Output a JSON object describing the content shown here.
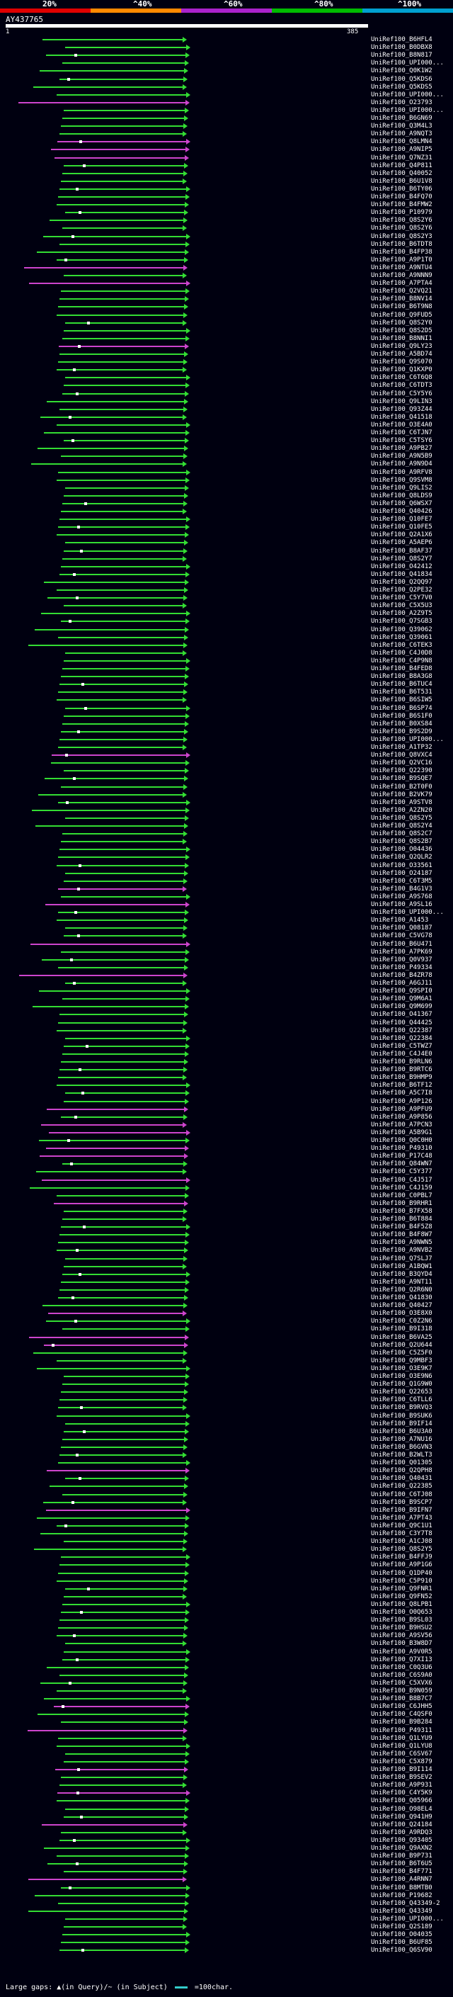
{
  "legend": {
    "labels": [
      "20%",
      "^40%",
      "^60%",
      "^80%",
      "^100%"
    ],
    "colors": [
      "#e00000",
      "#ff8800",
      "#aa22cc",
      "#00bb00",
      "#00a0d0"
    ]
  },
  "query": {
    "name": "AY437765",
    "start": "1",
    "end": "385"
  },
  "colors": {
    "green": "#33dd33",
    "magenta": "#cc44cc",
    "dark": "#335533"
  },
  "footer": {
    "gaps_label": "Large gaps:",
    "query_gap": "▲(in Query)/~ (in Subject)",
    "scale": "=100char."
  },
  "hits": [
    {
      "id": "UniRef100_B6HFL4",
      "c": "green"
    },
    {
      "id": "UniRef100_B0DBX8",
      "c": "green"
    },
    {
      "id": "UniRef100_B8N817",
      "c": "green"
    },
    {
      "id": "UniRef100_UPI000...",
      "c": "green"
    },
    {
      "id": "UniRef100_Q0K1W2",
      "c": "green"
    },
    {
      "id": "UniRef100_Q5KDS6",
      "c": "green"
    },
    {
      "id": "UniRef100_Q5KDS5",
      "c": "green"
    },
    {
      "id": "UniRef100_UPI000...",
      "c": "green"
    },
    {
      "id": "UniRef100_O23793",
      "c": "magenta"
    },
    {
      "id": "UniRef100_UPI000...",
      "c": "green"
    },
    {
      "id": "UniRef100_B6GN69",
      "c": "green"
    },
    {
      "id": "UniRef100_Q3M4L3",
      "c": "green"
    },
    {
      "id": "UniRef100_A9NQT3",
      "c": "green"
    },
    {
      "id": "UniRef100_Q8LMN4",
      "c": "magenta"
    },
    {
      "id": "UniRef100_A9NIP5",
      "c": "magenta"
    },
    {
      "id": "UniRef100_Q7NZ31",
      "c": "magenta"
    },
    {
      "id": "UniRef100_Q4P811",
      "c": "green"
    },
    {
      "id": "UniRef100_Q40052",
      "c": "green"
    },
    {
      "id": "UniRef100_B6U1V8",
      "c": "green"
    },
    {
      "id": "UniRef100_B6TY06",
      "c": "green"
    },
    {
      "id": "UniRef100_B4FQ70",
      "c": "green"
    },
    {
      "id": "UniRef100_B4FMW2",
      "c": "green"
    },
    {
      "id": "UniRef100_P10979",
      "c": "green"
    },
    {
      "id": "UniRef100_Q8S2Y6",
      "c": "green"
    },
    {
      "id": "UniRef100_Q8S2Y6",
      "c": "green"
    },
    {
      "id": "UniRef100_Q8S2Y3",
      "c": "green"
    },
    {
      "id": "UniRef100_B6TDT8",
      "c": "green"
    },
    {
      "id": "UniRef100_B4FP38",
      "c": "green"
    },
    {
      "id": "UniRef100_A9P1T0",
      "c": "green"
    },
    {
      "id": "UniRef100_A9NTU4",
      "c": "magenta"
    },
    {
      "id": "UniRef100_A9NNN9",
      "c": "green"
    },
    {
      "id": "UniRef100_A7PTA4",
      "c": "magenta"
    },
    {
      "id": "UniRef100_Q2VQ21",
      "c": "green"
    },
    {
      "id": "UniRef100_B8NV14",
      "c": "green"
    },
    {
      "id": "UniRef100_B6T9N8",
      "c": "green"
    },
    {
      "id": "UniRef100_Q9FUD5",
      "c": "green"
    },
    {
      "id": "UniRef100_Q8S2Y0",
      "c": "green"
    },
    {
      "id": "UniRef100_Q8S2D5",
      "c": "green"
    },
    {
      "id": "UniRef100_B8NNI1",
      "c": "green"
    },
    {
      "id": "UniRef100_Q9LY23",
      "c": "magenta"
    },
    {
      "id": "UniRef100_A5BD74",
      "c": "green"
    },
    {
      "id": "UniRef100_Q9S070",
      "c": "green"
    },
    {
      "id": "UniRef100_Q1KXP0",
      "c": "green"
    },
    {
      "id": "UniRef100_C6T6Q8",
      "c": "green"
    },
    {
      "id": "UniRef100_C6TDT3",
      "c": "green"
    },
    {
      "id": "UniRef100_C5Y5Y6",
      "c": "green"
    },
    {
      "id": "UniRef100_Q9LIN3",
      "c": "green"
    },
    {
      "id": "UniRef100_Q93Z44",
      "c": "green"
    },
    {
      "id": "UniRef100_Q41518",
      "c": "green"
    },
    {
      "id": "UniRef100_O3E4A0",
      "c": "green"
    },
    {
      "id": "UniRef100_C6TJN7",
      "c": "green"
    },
    {
      "id": "UniRef100_C5TSY6",
      "c": "green"
    },
    {
      "id": "UniRef100_A9PB27",
      "c": "green"
    },
    {
      "id": "UniRef100_A9N5B9",
      "c": "green"
    },
    {
      "id": "UniRef100_A9N9D4",
      "c": "green"
    },
    {
      "id": "UniRef100_A9RFV8",
      "c": "green"
    },
    {
      "id": "UniRef100_Q9SVM8",
      "c": "green"
    },
    {
      "id": "UniRef100_Q9LIS2",
      "c": "green"
    },
    {
      "id": "UniRef100_Q8LDS9",
      "c": "green"
    },
    {
      "id": "UniRef100_Q6WSX7",
      "c": "green"
    },
    {
      "id": "UniRef100_Q40426",
      "c": "green"
    },
    {
      "id": "UniRef100_Q10FE7",
      "c": "green"
    },
    {
      "id": "UniRef100_Q10FE5",
      "c": "green"
    },
    {
      "id": "UniRef100_Q2A1X6",
      "c": "green"
    },
    {
      "id": "UniRef100_A5AEP6",
      "c": "green"
    },
    {
      "id": "UniRef100_B8AF37",
      "c": "green"
    },
    {
      "id": "UniRef100_Q8S2Y7",
      "c": "green"
    },
    {
      "id": "UniRef100_O42412",
      "c": "green"
    },
    {
      "id": "UniRef100_Q41834",
      "c": "green"
    },
    {
      "id": "UniRef100_Q2QQ97",
      "c": "green"
    },
    {
      "id": "UniRef100_Q2PE32",
      "c": "green"
    },
    {
      "id": "UniRef100_C5Y7V0",
      "c": "green"
    },
    {
      "id": "UniRef100_C5X5U3",
      "c": "green"
    },
    {
      "id": "UniRef100_A2Z9T5",
      "c": "green"
    },
    {
      "id": "UniRef100_Q7SGB3",
      "c": "green"
    },
    {
      "id": "UniRef100_Q39062",
      "c": "green"
    },
    {
      "id": "UniRef100_Q39061",
      "c": "green"
    },
    {
      "id": "UniRef100_C6TEK3",
      "c": "green"
    },
    {
      "id": "UniRef100_C4J0D8",
      "c": "green"
    },
    {
      "id": "UniRef100_C4P9N8",
      "c": "green"
    },
    {
      "id": "UniRef100_B4FED8",
      "c": "green"
    },
    {
      "id": "UniRef100_B8A3G8",
      "c": "green"
    },
    {
      "id": "UniRef100_B6TUC4",
      "c": "green"
    },
    {
      "id": "UniRef100_B6T531",
      "c": "green"
    },
    {
      "id": "UniRef100_B6SIW5",
      "c": "green"
    },
    {
      "id": "UniRef100_B6SP74",
      "c": "green"
    },
    {
      "id": "UniRef100_B6S1F0",
      "c": "green"
    },
    {
      "id": "UniRef100_B0XS84",
      "c": "green"
    },
    {
      "id": "UniRef100_B9S2D9",
      "c": "green"
    },
    {
      "id": "UniRef100_UPI000...",
      "c": "green"
    },
    {
      "id": "UniRef100_A1TP32",
      "c": "green"
    },
    {
      "id": "UniRef100_Q8VXC4",
      "c": "magenta"
    },
    {
      "id": "UniRef100_Q2VC16",
      "c": "green"
    },
    {
      "id": "UniRef100_Q22390",
      "c": "green"
    },
    {
      "id": "UniRef100_B9SQE7",
      "c": "green"
    },
    {
      "id": "UniRef100_B2T0F0",
      "c": "green"
    },
    {
      "id": "UniRef100_B2VK79",
      "c": "green"
    },
    {
      "id": "UniRef100_A9STV8",
      "c": "green"
    },
    {
      "id": "UniRef100_A2ZN20",
      "c": "green"
    },
    {
      "id": "UniRef100_Q8S2Y5",
      "c": "green"
    },
    {
      "id": "UniRef100_Q8S2Y4",
      "c": "green"
    },
    {
      "id": "UniRef100_Q8S2C7",
      "c": "green"
    },
    {
      "id": "UniRef100_Q8S2B7",
      "c": "green"
    },
    {
      "id": "UniRef100_O04436",
      "c": "green"
    },
    {
      "id": "UniRef100_Q2QLR2",
      "c": "green"
    },
    {
      "id": "UniRef100_O33561",
      "c": "green"
    },
    {
      "id": "UniRef100_O24187",
      "c": "green"
    },
    {
      "id": "UniRef100_C6T3M5",
      "c": "green"
    },
    {
      "id": "UniRef100_B4G1V3",
      "c": "magenta"
    },
    {
      "id": "UniRef100_A9S768",
      "c": "green"
    },
    {
      "id": "UniRef100_A9SL16",
      "c": "magenta"
    },
    {
      "id": "UniRef100_UPI000...",
      "c": "green"
    },
    {
      "id": "UniRef100_A1453",
      "c": "green"
    },
    {
      "id": "UniRef100_Q08187",
      "c": "green"
    },
    {
      "id": "UniRef100_C5VG78",
      "c": "green"
    },
    {
      "id": "UniRef100_B6U471",
      "c": "magenta"
    },
    {
      "id": "UniRef100_A7PK69",
      "c": "green"
    },
    {
      "id": "UniRef100_Q0V937",
      "c": "green"
    },
    {
      "id": "UniRef100_P49334",
      "c": "green"
    },
    {
      "id": "UniRef100_B4ZR78",
      "c": "magenta"
    },
    {
      "id": "UniRef100_A6GJ11",
      "c": "green"
    },
    {
      "id": "UniRef100_Q9SPI0",
      "c": "green"
    },
    {
      "id": "UniRef100_Q9M6A1",
      "c": "green"
    },
    {
      "id": "UniRef100_Q9M699",
      "c": "green"
    },
    {
      "id": "UniRef100_O41367",
      "c": "green"
    },
    {
      "id": "UniRef100_Q44425",
      "c": "green"
    },
    {
      "id": "UniRef100_Q22387",
      "c": "green"
    },
    {
      "id": "UniRef100_Q22384",
      "c": "green"
    },
    {
      "id": "UniRef100_C5TWZ7",
      "c": "green"
    },
    {
      "id": "UniRef100_C4J4E0",
      "c": "green"
    },
    {
      "id": "UniRef100_B9RLN6",
      "c": "green"
    },
    {
      "id": "UniRef100_B9RTC6",
      "c": "green"
    },
    {
      "id": "UniRef100_B9HMP9",
      "c": "green"
    },
    {
      "id": "UniRef100_B6TF12",
      "c": "green"
    },
    {
      "id": "UniRef100_A5C7I8",
      "c": "green"
    },
    {
      "id": "UniRef100_A9P126",
      "c": "green"
    },
    {
      "id": "UniRef100_A9PFU9",
      "c": "magenta"
    },
    {
      "id": "UniRef100_A9P856",
      "c": "green"
    },
    {
      "id": "UniRef100_A7PCN3",
      "c": "magenta"
    },
    {
      "id": "UniRef100_A5B9G1",
      "c": "magenta"
    },
    {
      "id": "UniRef100_Q0C0H0",
      "c": "green"
    },
    {
      "id": "UniRef100_P49310",
      "c": "magenta"
    },
    {
      "id": "UniRef100_P17C48",
      "c": "magenta"
    },
    {
      "id": "UniRef100_Q84WN7",
      "c": "green"
    },
    {
      "id": "UniRef100_C5Y377",
      "c": "green"
    },
    {
      "id": "UniRef100_C4J517",
      "c": "magenta"
    },
    {
      "id": "UniRef100_C4J159",
      "c": "green"
    },
    {
      "id": "UniRef100_C0PBL7",
      "c": "green"
    },
    {
      "id": "UniRef100_B9RHR1",
      "c": "magenta"
    },
    {
      "id": "UniRef100_B7FX58",
      "c": "green"
    },
    {
      "id": "UniRef100_B6T884",
      "c": "green"
    },
    {
      "id": "UniRef100_B4F5Z8",
      "c": "green"
    },
    {
      "id": "UniRef100_B4F8W7",
      "c": "green"
    },
    {
      "id": "UniRef100_A9NWN5",
      "c": "green"
    },
    {
      "id": "UniRef100_A9NVB2",
      "c": "green"
    },
    {
      "id": "UniRef100_Q7SLJ7",
      "c": "green"
    },
    {
      "id": "UniRef100_A1BQW1",
      "c": "green"
    },
    {
      "id": "UniRef100_B3QYD4",
      "c": "green"
    },
    {
      "id": "UniRef100_A9NT11",
      "c": "green"
    },
    {
      "id": "UniRef100_Q2R6N0",
      "c": "green"
    },
    {
      "id": "UniRef100_Q41830",
      "c": "green"
    },
    {
      "id": "UniRef100_Q40427",
      "c": "green"
    },
    {
      "id": "UniRef100_O3E8X0",
      "c": "magenta"
    },
    {
      "id": "UniRef100_C0Z2N6",
      "c": "green"
    },
    {
      "id": "UniRef100_B9I318",
      "c": "green"
    },
    {
      "id": "UniRef100_B6VA25",
      "c": "magenta"
    },
    {
      "id": "UniRef100_Q2U644",
      "c": "magenta"
    },
    {
      "id": "UniRef100_C5Z5F0",
      "c": "green"
    },
    {
      "id": "UniRef100_Q9MBF3",
      "c": "green"
    },
    {
      "id": "UniRef100_O3E9K7",
      "c": "green"
    },
    {
      "id": "UniRef100_O3E9N6",
      "c": "green"
    },
    {
      "id": "UniRef100_Q1G9W0",
      "c": "green"
    },
    {
      "id": "UniRef100_Q22653",
      "c": "green"
    },
    {
      "id": "UniRef100_C6TLL6",
      "c": "green"
    },
    {
      "id": "UniRef100_B9RVQ3",
      "c": "green"
    },
    {
      "id": "UniRef100_B9SUK6",
      "c": "green"
    },
    {
      "id": "UniRef100_B9IF14",
      "c": "green"
    },
    {
      "id": "UniRef100_B6U3A0",
      "c": "green"
    },
    {
      "id": "UniRef100_A7NU16",
      "c": "green"
    },
    {
      "id": "UniRef100_B6GVN3",
      "c": "green"
    },
    {
      "id": "UniRef100_B2WLT3",
      "c": "green"
    },
    {
      "id": "UniRef100_Q01305",
      "c": "green"
    },
    {
      "id": "UniRef100_Q2QPH8",
      "c": "magenta"
    },
    {
      "id": "UniRef100_Q40431",
      "c": "green"
    },
    {
      "id": "UniRef100_Q22385",
      "c": "green"
    },
    {
      "id": "UniRef100_C6TJ08",
      "c": "green"
    },
    {
      "id": "UniRef100_B9SCP7",
      "c": "green"
    },
    {
      "id": "UniRef100_B9IFN7",
      "c": "magenta"
    },
    {
      "id": "UniRef100_A7PT43",
      "c": "green"
    },
    {
      "id": "UniRef100_Q9C1U1",
      "c": "green"
    },
    {
      "id": "UniRef100_C3Y7T8",
      "c": "green"
    },
    {
      "id": "UniRef100_A1CJ08",
      "c": "green"
    },
    {
      "id": "UniRef100_Q8S2Y5",
      "c": "green"
    },
    {
      "id": "UniRef100_B4FFJ9",
      "c": "green"
    },
    {
      "id": "UniRef100_A9P1G6",
      "c": "green"
    },
    {
      "id": "UniRef100_Q1DP40",
      "c": "green"
    },
    {
      "id": "UniRef100_C5P910",
      "c": "green"
    },
    {
      "id": "UniRef100_Q9FNR1",
      "c": "green"
    },
    {
      "id": "UniRef100_Q9FN52",
      "c": "green"
    },
    {
      "id": "UniRef100_Q8LPB1",
      "c": "green"
    },
    {
      "id": "UniRef100_O0Q653",
      "c": "green"
    },
    {
      "id": "UniRef100_B9SL03",
      "c": "green"
    },
    {
      "id": "UniRef100_B9HSU2",
      "c": "green"
    },
    {
      "id": "UniRef100_A9SV56",
      "c": "green"
    },
    {
      "id": "UniRef100_B3W8D7",
      "c": "green"
    },
    {
      "id": "UniRef100_A9V0R5",
      "c": "green"
    },
    {
      "id": "UniRef100_Q7XI13",
      "c": "green"
    },
    {
      "id": "UniRef100_C0Q3U6",
      "c": "green"
    },
    {
      "id": "UniRef100_C6S9A0",
      "c": "green"
    },
    {
      "id": "UniRef100_C5XVX6",
      "c": "green"
    },
    {
      "id": "UniRef100_B9N059",
      "c": "green"
    },
    {
      "id": "UniRef100_B8B7C7",
      "c": "green"
    },
    {
      "id": "UniRef100_C6JHH5",
      "c": "magenta"
    },
    {
      "id": "UniRef100_C4QSF0",
      "c": "green"
    },
    {
      "id": "UniRef100_B9B284",
      "c": "green"
    },
    {
      "id": "UniRef100_P49311",
      "c": "magenta"
    },
    {
      "id": "UniRef100_Q1LYU9",
      "c": "green"
    },
    {
      "id": "UniRef100_Q1LYU8",
      "c": "green"
    },
    {
      "id": "UniRef100_C6SV67",
      "c": "green"
    },
    {
      "id": "UniRef100_C5X879",
      "c": "green"
    },
    {
      "id": "UniRef100_B9I114",
      "c": "magenta"
    },
    {
      "id": "UniRef100_B9SEV2",
      "c": "green"
    },
    {
      "id": "UniRef100_A9P931",
      "c": "green"
    },
    {
      "id": "UniRef100_C4Y5K9",
      "c": "magenta"
    },
    {
      "id": "UniRef100_Q05966",
      "c": "green"
    },
    {
      "id": "UniRef100_O98EL4",
      "c": "green"
    },
    {
      "id": "UniRef100_Q941H9",
      "c": "green"
    },
    {
      "id": "UniRef100_Q24184",
      "c": "magenta"
    },
    {
      "id": "UniRef100_A9RDQ3",
      "c": "green"
    },
    {
      "id": "UniRef100_Q93405",
      "c": "green"
    },
    {
      "id": "UniRef100_Q9AXN2",
      "c": "green"
    },
    {
      "id": "UniRef100_B9P731",
      "c": "green"
    },
    {
      "id": "UniRef100_B6T6U5",
      "c": "green"
    },
    {
      "id": "UniRef100_B4F771",
      "c": "green"
    },
    {
      "id": "UniRef100_A4RNN7",
      "c": "magenta"
    },
    {
      "id": "UniRef100_B8MTB0",
      "c": "green"
    },
    {
      "id": "UniRef100_P19682",
      "c": "green"
    },
    {
      "id": "UniRef100_Q43349-2",
      "c": "green"
    },
    {
      "id": "UniRef100_Q43349",
      "c": "green"
    },
    {
      "id": "UniRef100_UPI000...",
      "c": "green"
    },
    {
      "id": "UniRef100_Q2S189",
      "c": "green"
    },
    {
      "id": "UniRef100_O04035",
      "c": "green"
    },
    {
      "id": "UniRef100_B6UF85",
      "c": "green"
    },
    {
      "id": "UniRef100_Q6SV90",
      "c": "green"
    }
  ]
}
